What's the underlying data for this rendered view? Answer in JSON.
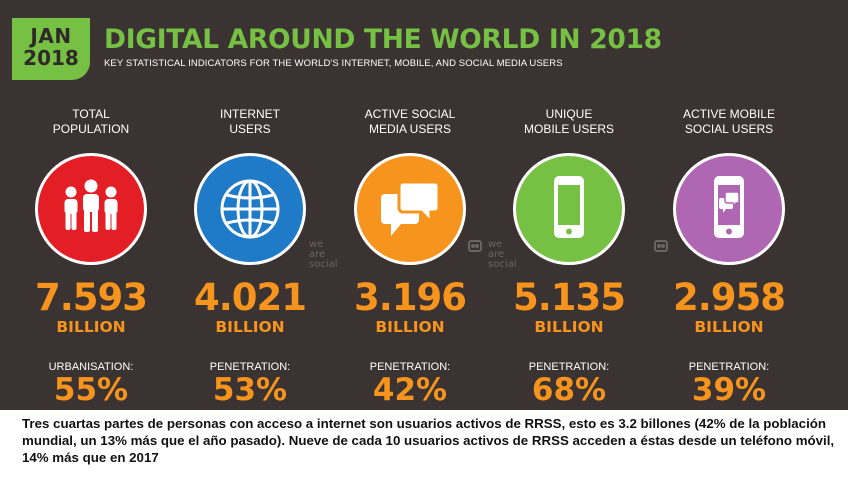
{
  "header": {
    "badge_month": "JAN",
    "badge_year": "2018",
    "title": "DIGITAL AROUND THE WORLD IN 2018",
    "subtitle": "KEY STATISTICAL INDICATORS FOR THE WORLD'S INTERNET, MOBILE, AND SOCIAL MEDIA USERS"
  },
  "watermark": {
    "line1": "we",
    "line2": "are",
    "line3": "social"
  },
  "columns": [
    {
      "head1": "TOTAL",
      "head2": "POPULATION",
      "icon": "people-icon",
      "color": "#e31e24",
      "value": "7.593",
      "unit": "BILLION",
      "metric_label": "URBANISATION:",
      "metric_value": "55%"
    },
    {
      "head1": "INTERNET",
      "head2": "USERS",
      "icon": "globe-icon",
      "color": "#1f7ac8",
      "value": "4.021",
      "unit": "BILLION",
      "metric_label": "PENETRATION:",
      "metric_value": "53%"
    },
    {
      "head1": "ACTIVE SOCIAL",
      "head2": "MEDIA USERS",
      "icon": "chat-bubbles-icon",
      "color": "#f7941d",
      "value": "3.196",
      "unit": "BILLION",
      "metric_label": "PENETRATION:",
      "metric_value": "42%"
    },
    {
      "head1": "UNIQUE",
      "head2": "MOBILE USERS",
      "icon": "mobile-phone-icon",
      "color": "#76c043",
      "value": "5.135",
      "unit": "BILLION",
      "metric_label": "PENETRATION:",
      "metric_value": "68%"
    },
    {
      "head1": "ACTIVE MOBILE",
      "head2": "SOCIAL USERS",
      "icon": "mobile-chat-icon",
      "color": "#b067b3",
      "value": "2.958",
      "unit": "BILLION",
      "metric_label": "PENETRATION:",
      "metric_value": "39%"
    }
  ],
  "caption": "Tres cuartas partes de personas con acceso a internet son usuarios activos de RRSS, esto es 3.2 billones (42% de la población mundial, un 13% más que el año pasado). Nueve de cada 10 usuarios activos de RRSS acceden a éstas desde un teléfono móvil, 14% más que en 2017"
}
